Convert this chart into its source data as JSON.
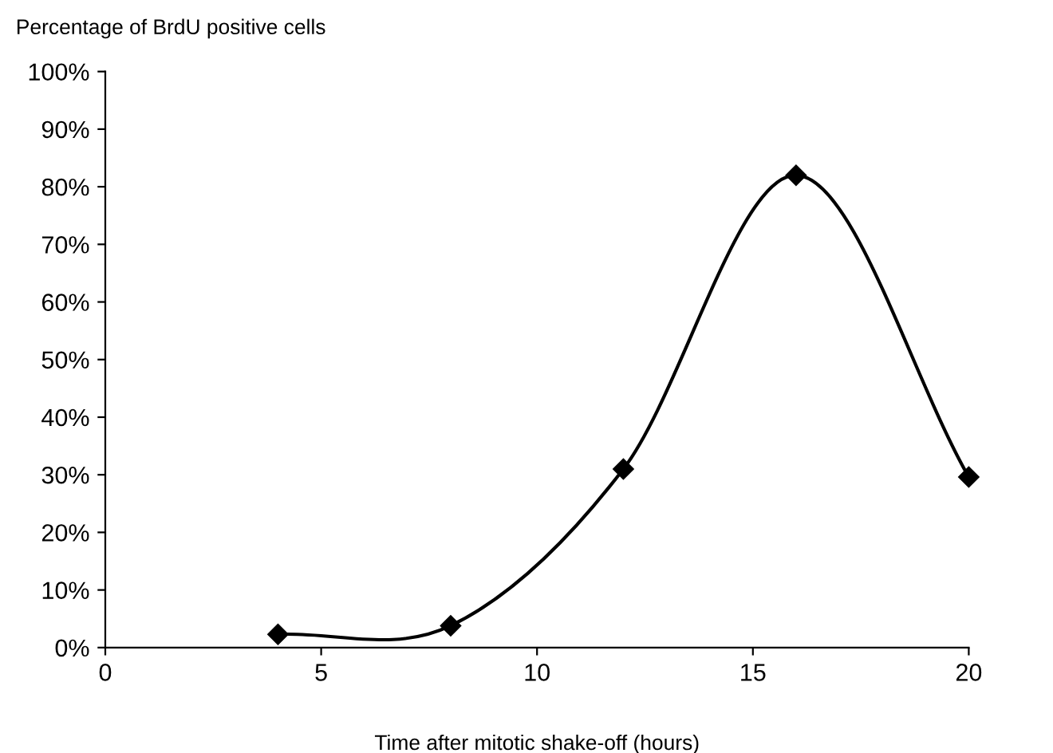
{
  "chart_data": {
    "type": "line",
    "ylabel": "Percentage of BrdU positive cells",
    "xlabel": "Time after mitotic shake-off (hours)",
    "x": [
      4,
      8,
      12,
      16,
      20
    ],
    "series": [
      {
        "color": "#000000",
        "values": [
          2.3,
          3.8,
          31,
          82,
          29.6
        ]
      }
    ],
    "marker": "diamond",
    "line_style": "solid",
    "grid": false,
    "xlim": [
      0,
      20
    ],
    "xticks": [
      0,
      5,
      10,
      15,
      20
    ],
    "ylim": [
      0,
      100
    ],
    "yticks": [
      {
        "value": 0,
        "label": "0%"
      },
      {
        "value": 10,
        "label": "10%"
      },
      {
        "value": 20,
        "label": "20%"
      },
      {
        "value": 30,
        "label": "30%"
      },
      {
        "value": 40,
        "label": "40%"
      },
      {
        "value": 50,
        "label": "50%"
      },
      {
        "value": 60,
        "label": "60%"
      },
      {
        "value": 70,
        "label": "70%"
      },
      {
        "value": 80,
        "label": "80%"
      },
      {
        "value": 90,
        "label": "90%"
      },
      {
        "value": 100,
        "label": "100%"
      }
    ]
  }
}
